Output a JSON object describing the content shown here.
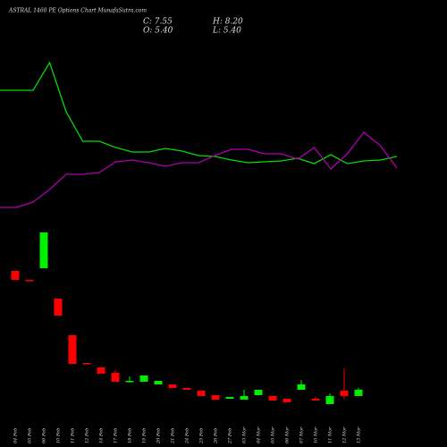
{
  "chart_data": [
    {
      "type": "candlestick",
      "title": "ASTRAL 1460 PE Options Chart MunafaSutra.com",
      "ohlc_text": [
        "C: 7.55",
        "H: 8.20",
        "O: 5.40",
        "L: 5.40"
      ],
      "categories": [
        "04 Feb",
        "05 Feb",
        "06 Feb",
        "10 Feb",
        "11 Feb",
        "12 Feb",
        "14 Feb",
        "17 Feb",
        "18 Feb",
        "19 Feb",
        "20 Feb",
        "21 Feb",
        "24 Feb",
        "25 Feb",
        "26 Feb",
        "27 Feb",
        "03 Mar",
        "04 Mar",
        "05 Mar",
        "06 Mar",
        "07 Mar",
        "10 Mar",
        "11 Mar",
        "12 Mar",
        "13 Mar"
      ],
      "open": [
        47.4,
        44.4,
        48.3,
        38.1,
        25.8,
        16.5,
        15,
        13.2,
        10.2,
        10.2,
        9.3,
        9.3,
        8.1,
        7.2,
        5.7,
        4.5,
        4.2,
        5.7,
        5.4,
        4.5,
        7.5,
        4.5,
        2.7,
        7.2,
        5.4
      ],
      "close": [
        44.4,
        44.1,
        60.3,
        32.4,
        16.2,
        16.2,
        12.9,
        10.2,
        10.5,
        12.3,
        10.5,
        8.1,
        7.5,
        5.4,
        4.2,
        5.1,
        5.4,
        7.5,
        3.9,
        3.3,
        9.3,
        3.9,
        5.4,
        5.4,
        7.55
      ],
      "high": [
        47.4,
        44.4,
        60.3,
        38.1,
        25.8,
        16.5,
        15,
        14.1,
        12,
        12.3,
        10.5,
        9.3,
        8.1,
        7.2,
        5.7,
        5.1,
        7.5,
        7.5,
        5.4,
        4.5,
        10.8,
        5.1,
        6.3,
        14.7,
        8.2
      ],
      "low": [
        44.4,
        44.1,
        48.3,
        32.4,
        16.2,
        16.2,
        12.9,
        10.2,
        9.9,
        10.2,
        9.3,
        8.1,
        7.5,
        5.4,
        4.2,
        4.5,
        4.2,
        5.7,
        3.9,
        3.3,
        7.5,
        3.9,
        2.7,
        4.5,
        5.4
      ],
      "up_color": "#00ee00",
      "down_color": "#ff0000",
      "ylim": [
        0,
        63
      ]
    },
    {
      "type": "line",
      "series": [
        {
          "color": "#00dd00",
          "values": [
            74.5,
            74.5,
            74.5,
            90,
            62.5,
            46,
            46,
            42.5,
            40,
            40,
            42,
            40.5,
            38,
            37.5,
            35.5,
            34,
            34.5,
            35,
            36.5,
            33.5,
            38.5,
            33.5,
            35,
            35.5,
            37.5
          ]
        },
        {
          "color": "#b000b0",
          "values": [
            9,
            9,
            12,
            19,
            27.5,
            27.5,
            28.5,
            34.5,
            35.5,
            34,
            32,
            34,
            34,
            38,
            41.5,
            41.5,
            39,
            39,
            36,
            42.5,
            30.5,
            39,
            51,
            43.5,
            31
          ]
        }
      ],
      "ylim": [
        0,
        100
      ]
    }
  ]
}
